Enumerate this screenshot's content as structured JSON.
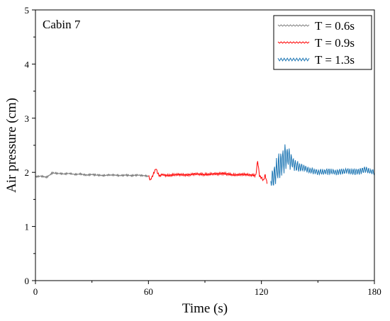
{
  "chart_data": {
    "type": "line",
    "title": "",
    "annotation": "Cabin 7",
    "xlabel": "Time (s)",
    "ylabel": "Air pressure (cm)",
    "xlim": [
      0,
      180
    ],
    "ylim": [
      0,
      5
    ],
    "x_ticks": [
      0,
      60,
      120,
      180
    ],
    "y_ticks": [
      0,
      1,
      2,
      3,
      4,
      5
    ],
    "grid": false,
    "legend_position": "top-right",
    "series": [
      {
        "name": "T = 0.6s",
        "color": "#7f7f7f",
        "x": [
          0,
          3,
          6,
          9,
          12,
          15,
          18,
          21,
          24,
          27,
          30,
          33,
          36,
          39,
          42,
          45,
          48,
          51,
          54,
          57,
          60
        ],
        "y": [
          1.92,
          1.93,
          1.91,
          1.99,
          1.98,
          1.97,
          1.98,
          1.96,
          1.97,
          1.95,
          1.96,
          1.95,
          1.94,
          1.95,
          1.95,
          1.94,
          1.95,
          1.94,
          1.95,
          1.94,
          1.93
        ]
      },
      {
        "name": "T = 0.9s",
        "color": "#ff0000",
        "x": [
          60,
          61,
          62,
          63,
          64,
          65,
          66,
          67,
          70,
          75,
          80,
          85,
          90,
          95,
          100,
          105,
          110,
          115,
          117,
          118,
          119,
          120,
          121,
          122,
          123
        ],
        "y": [
          1.93,
          1.86,
          1.92,
          2.0,
          2.07,
          1.98,
          1.93,
          1.96,
          1.94,
          1.96,
          1.95,
          1.97,
          1.96,
          1.97,
          1.98,
          1.95,
          1.96,
          1.95,
          1.94,
          2.22,
          1.93,
          1.9,
          1.85,
          1.95,
          1.8
        ]
      },
      {
        "name": "T = 1.3s",
        "color": "#1f77b4",
        "x": [
          125,
          127,
          129,
          131,
          133,
          135,
          137,
          140,
          145,
          150,
          155,
          160,
          165,
          170,
          175,
          180
        ],
        "y": [
          1.85,
          1.95,
          2.1,
          2.2,
          2.3,
          2.25,
          2.15,
          2.1,
          2.05,
          2.0,
          2.02,
          2.0,
          2.03,
          2.0,
          2.05,
          2.0
        ]
      }
    ]
  }
}
